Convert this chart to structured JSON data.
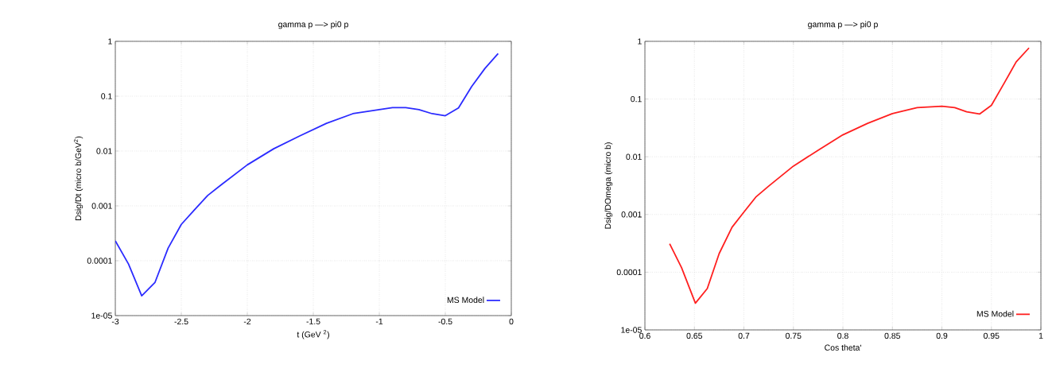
{
  "chart_data": [
    {
      "type": "line",
      "title": "gamma p —> pi0 p",
      "xlabel": "t (GeV $^{2}$)",
      "ylabel": "Dsig/Dt (micro b/GeV$^{2}$)",
      "log": "y",
      "grid": true,
      "legend": "bottom right",
      "line_style": "solid",
      "xlim": [
        -3,
        0
      ],
      "ylim": [
        1e-05,
        1
      ],
      "xticks": [
        -3,
        -2.5,
        -2,
        -1.5,
        -1,
        -0.5,
        0
      ],
      "yticks": [
        {
          "value": 1e-05,
          "label": "1e-05"
        },
        {
          "value": 0.0001,
          "label": "0.0001"
        },
        {
          "value": 0.001,
          "label": "0.001"
        },
        {
          "value": 0.01,
          "label": "0.01"
        },
        {
          "value": 0.1,
          "label": "0.1"
        },
        {
          "value": 1,
          "label": "1"
        }
      ],
      "series": [
        {
          "name": "MS Model",
          "color": "#2b2bff",
          "x": [
            -3,
            -2.9,
            -2.8,
            -2.7,
            -2.6,
            -2.5,
            -2.4,
            -2.3,
            -2.2,
            -2.0,
            -1.8,
            -1.6,
            -1.4,
            -1.2,
            -1.0,
            -0.9,
            -0.8,
            -0.7,
            -0.6,
            -0.5,
            -0.4,
            -0.3,
            -0.2,
            -0.1
          ],
          "values": [
            0.00023,
            8.7e-05,
            2.3e-05,
            4e-05,
            0.00017,
            0.00046,
            0.00085,
            0.00155,
            0.0024,
            0.0056,
            0.011,
            0.019,
            0.032,
            0.048,
            0.057,
            0.062,
            0.062,
            0.057,
            0.048,
            0.044,
            0.061,
            0.15,
            0.32,
            0.6
          ]
        }
      ]
    },
    {
      "type": "line",
      "title": "gamma p —> pi0 p",
      "xlabel": "Cos theta'",
      "ylabel": "Dsig/DOmega (micro b)",
      "log": "y",
      "grid": true,
      "legend": "bottom right",
      "line_style": "solid",
      "xlim": [
        0.6,
        1
      ],
      "ylim": [
        1e-05,
        1
      ],
      "xticks": [
        0.6,
        0.65,
        0.7,
        0.75,
        0.8,
        0.85,
        0.9,
        0.95,
        1
      ],
      "yticks": [
        {
          "value": 1e-05,
          "label": "1e-05"
        },
        {
          "value": 0.0001,
          "label": "0.0001"
        },
        {
          "value": 0.001,
          "label": "0.001"
        },
        {
          "value": 0.01,
          "label": "0.01"
        },
        {
          "value": 0.1,
          "label": "0.1"
        },
        {
          "value": 1,
          "label": "1"
        }
      ],
      "series": [
        {
          "name": "MS Model",
          "color": "#ff1f1f",
          "x": [
            0.625,
            0.637,
            0.651,
            0.663,
            0.675,
            0.688,
            0.7,
            0.712,
            0.725,
            0.75,
            0.775,
            0.8,
            0.825,
            0.85,
            0.875,
            0.9,
            0.913,
            0.925,
            0.938,
            0.95,
            0.963,
            0.975,
            0.988
          ],
          "values": [
            0.00031,
            0.00012,
            2.9e-05,
            5.2e-05,
            0.00021,
            0.0006,
            0.0011,
            0.002,
            0.0031,
            0.0069,
            0.013,
            0.024,
            0.038,
            0.056,
            0.071,
            0.075,
            0.071,
            0.06,
            0.055,
            0.078,
            0.19,
            0.44,
            0.77
          ]
        }
      ]
    }
  ]
}
